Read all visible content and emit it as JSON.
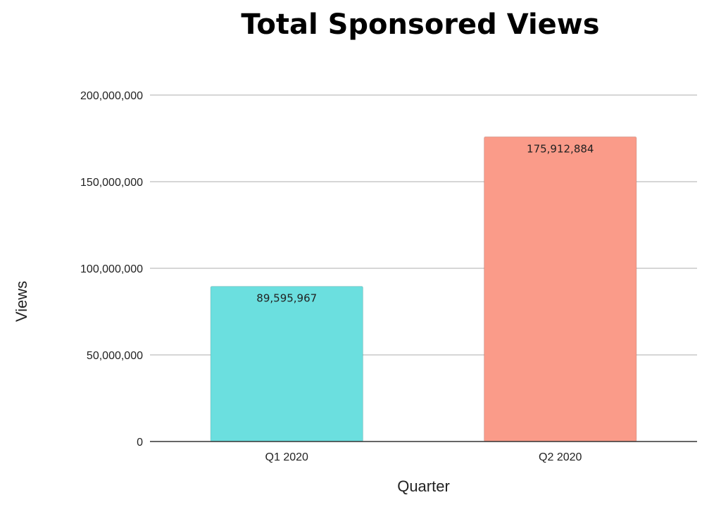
{
  "chart_data": {
    "type": "bar",
    "title": "Total Sponsored Views",
    "xlabel": "Quarter",
    "ylabel": "Views",
    "categories": [
      "Q1 2020",
      "Q2 2020"
    ],
    "values": [
      89595967,
      175912884
    ],
    "data_labels": [
      "89,595,967",
      "175,912,884"
    ],
    "colors": [
      "#6BDFDF",
      "#FA9B89"
    ],
    "ylim": [
      0,
      200000000
    ],
    "yticks": [
      0,
      50000000,
      100000000,
      150000000,
      200000000
    ],
    "ytick_labels": [
      "0",
      "50,000,000",
      "100,000,000",
      "150,000,000",
      "200,000,000"
    ],
    "grid": true,
    "legend": "none"
  }
}
